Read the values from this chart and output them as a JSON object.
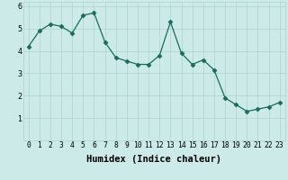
{
  "x": [
    0,
    1,
    2,
    3,
    4,
    5,
    6,
    7,
    8,
    9,
    10,
    11,
    12,
    13,
    14,
    15,
    16,
    17,
    18,
    19,
    20,
    21,
    22,
    23
  ],
  "y": [
    4.2,
    4.9,
    5.2,
    5.1,
    4.8,
    5.6,
    5.7,
    4.4,
    3.7,
    3.55,
    3.4,
    3.4,
    3.8,
    5.3,
    3.9,
    3.4,
    3.6,
    3.15,
    1.9,
    1.6,
    1.3,
    1.4,
    1.5,
    1.7
  ],
  "xlabel": "Humidex (Indice chaleur)",
  "ylabel": "",
  "xlim": [
    -0.5,
    23.5
  ],
  "ylim": [
    0,
    6.2
  ],
  "yticks": [
    1,
    2,
    3,
    4,
    5,
    6
  ],
  "xticks": [
    0,
    1,
    2,
    3,
    4,
    5,
    6,
    7,
    8,
    9,
    10,
    11,
    12,
    13,
    14,
    15,
    16,
    17,
    18,
    19,
    20,
    21,
    22,
    23
  ],
  "line_color": "#1a6b5a",
  "marker": "D",
  "marker_size": 2.5,
  "bg_color": "#cceae7",
  "grid_color": "#b0d4d0",
  "xlabel_fontsize": 7.5,
  "tick_fontsize": 5.8
}
